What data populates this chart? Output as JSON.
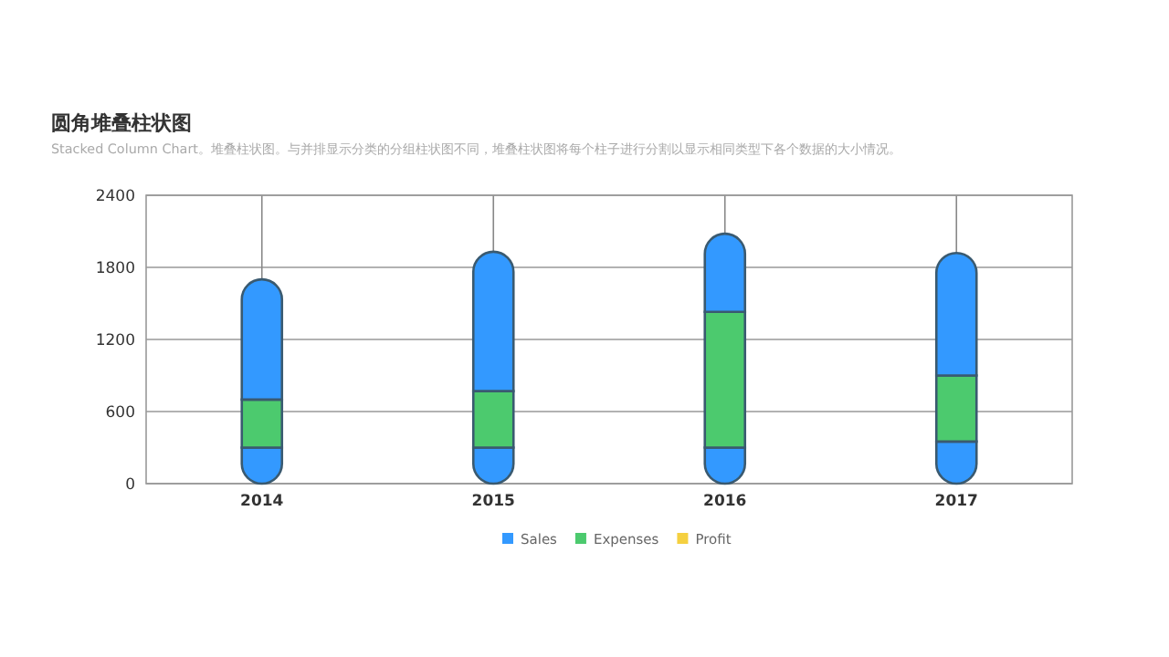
{
  "chart_data": {
    "type": "bar",
    "stacked": true,
    "title": "圆角堆叠柱状图",
    "subtitle": "Stacked Column Chart。堆叠柱状图。与并排显示分类的分组柱状图不同，堆叠柱状图将每个柱子进行分割以显示相同类型下各个数据的大小情况。",
    "categories": [
      "2014",
      "2015",
      "2016",
      "2017"
    ],
    "series": [
      {
        "name": "Sales",
        "color": "#3399ff",
        "values": [
          300,
          300,
          300,
          350
        ]
      },
      {
        "name": "Expenses",
        "color": "#4cca6e",
        "values": [
          400,
          470,
          1130,
          550
        ]
      },
      {
        "color": "#3399ff",
        "values": [
          1000,
          1160,
          650,
          1020
        ]
      },
      {
        "name": "Profit",
        "color": "#f5d040",
        "values": [
          null,
          null,
          null,
          null
        ]
      }
    ],
    "ylim": [
      0,
      2400
    ],
    "yticks": [
      0,
      600,
      1200,
      1800,
      2400
    ],
    "grid": true,
    "legend": "bottom"
  }
}
